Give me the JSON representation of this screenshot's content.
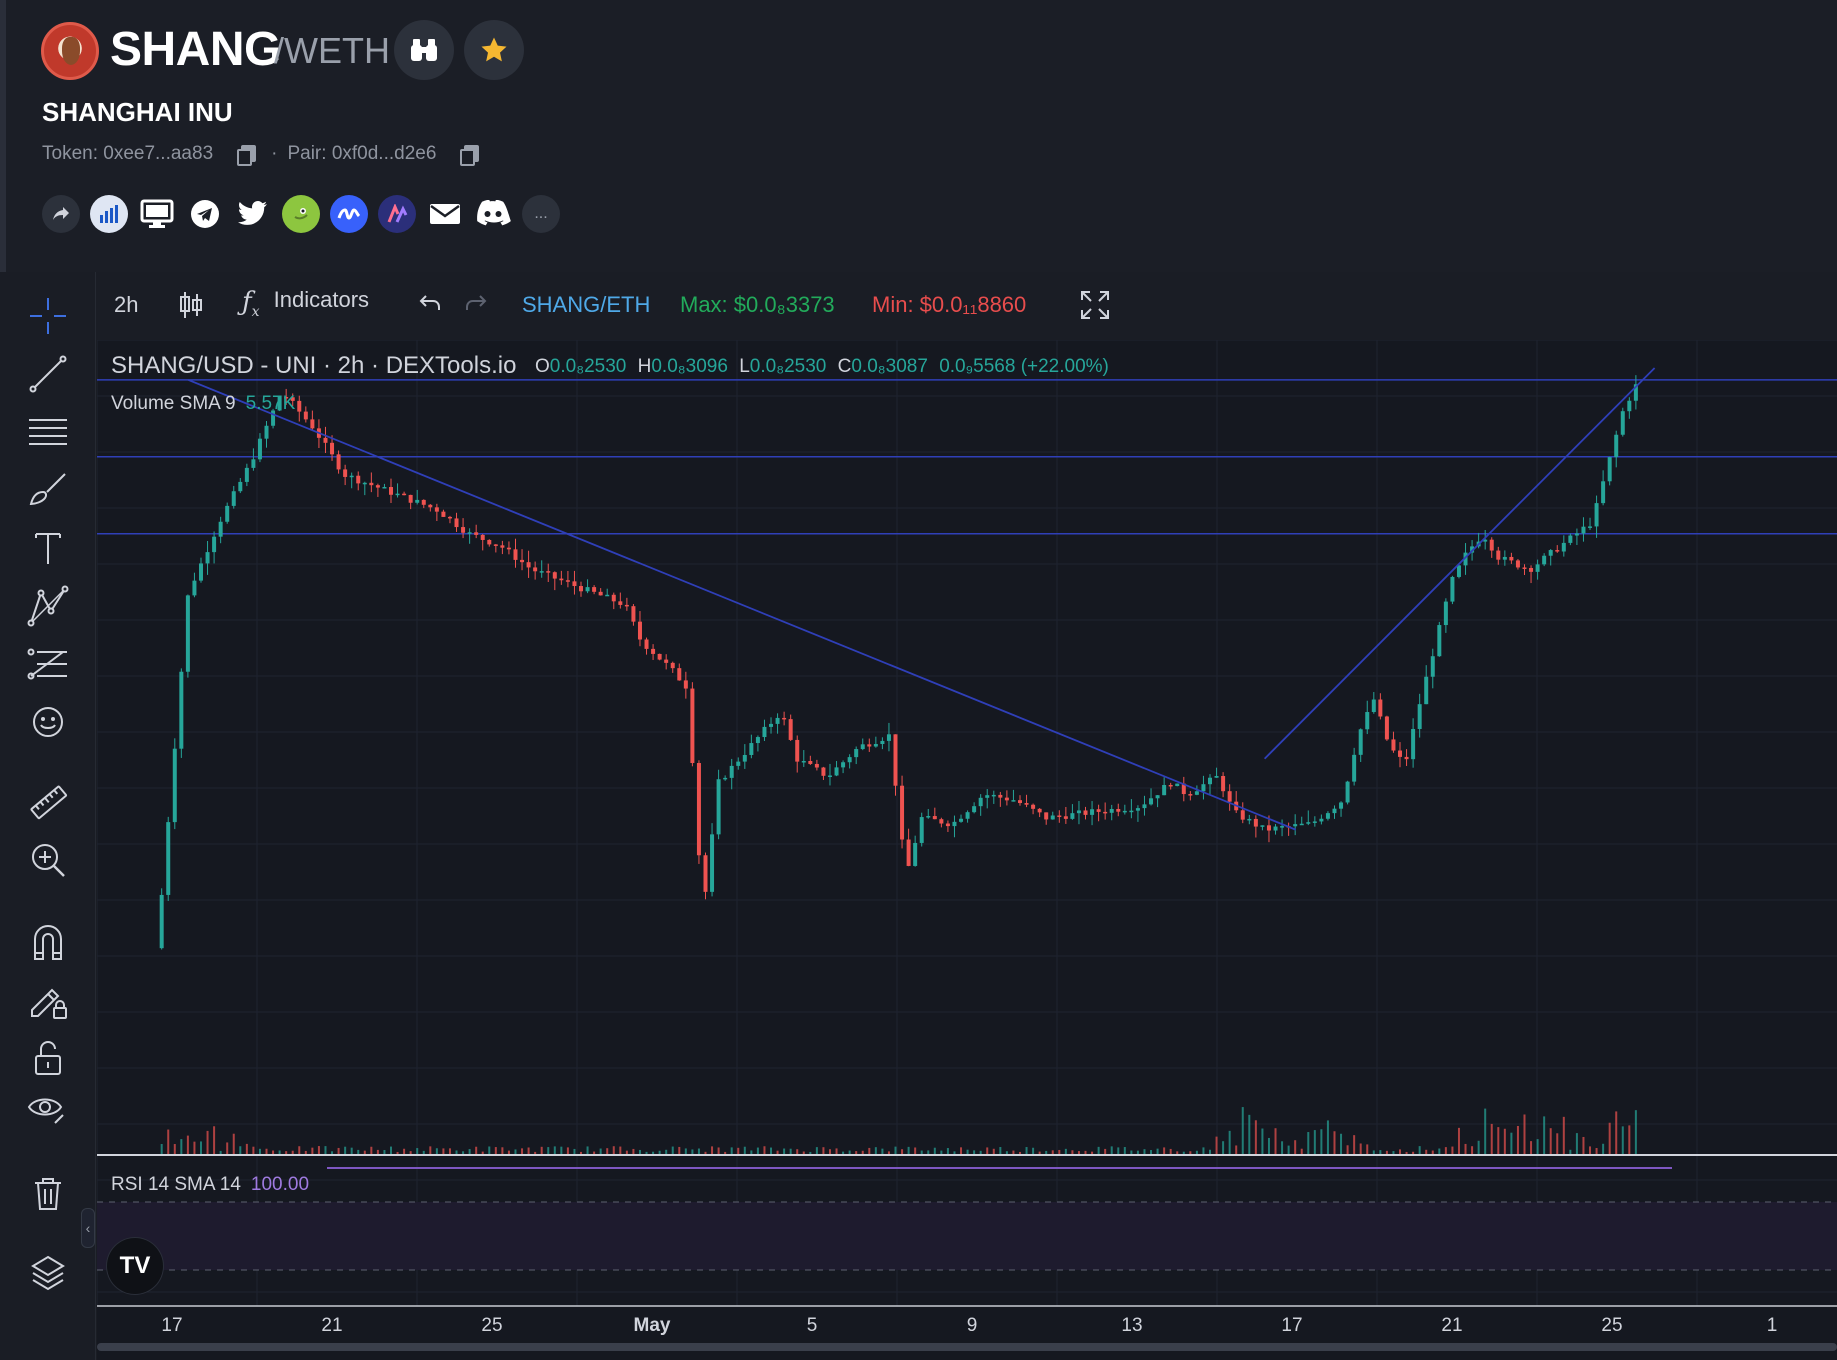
{
  "header": {
    "symbol": "SHANG",
    "quote": "/WETH",
    "name": "SHANGHAI INU",
    "token_label": "Token: 0xee7...aa83",
    "separator": "·",
    "pair_label": "Pair: 0xf0d...d2e6",
    "socials": [
      "share-icon",
      "dextools-chart-icon",
      "website-icon",
      "telegram-icon",
      "twitter-icon",
      "coingecko-icon",
      "coinmarketcap-icon",
      "arbitrum-icon",
      "email-icon",
      "discord-icon",
      "more-icon"
    ],
    "more_label": "..."
  },
  "toolbar": {
    "interval": "2h",
    "indicators": "Indicators",
    "pair": "SHANG/ETH",
    "max": "Max: $0.0₈3373",
    "min": "Min: $0.0₁₁8860"
  },
  "legend": {
    "title": "SHANG/USD - UNI · 2h · DEXTools.io",
    "o_k": "O",
    "o_v": "0.0₈2530",
    "h_k": "H",
    "h_v": "0.0₈3096",
    "l_k": "L",
    "l_v": "0.0₈2530",
    "c_k": "C",
    "c_v": "0.0₈3087",
    "change": "0.0₉5568 (+22.00%)",
    "volume_label": "Volume SMA 9",
    "volume_value": "5.57K",
    "rsi_label": "RSI 14 SMA 14",
    "rsi_value": "100.00"
  },
  "xaxis": {
    "labels": [
      "17",
      "21",
      "25",
      "May",
      "5",
      "9",
      "13",
      "17",
      "21",
      "25",
      "1"
    ]
  },
  "colors": {
    "up": "#26a69a",
    "down": "#ef5350",
    "drawing": "#2f3fb8",
    "rsi": "#7e57c2",
    "accent": "#4fa9e8",
    "max": "#22ab5b",
    "min": "#e84d4d"
  },
  "chart_data": {
    "type": "candlestick",
    "title": "SHANG/USD - UNI · 2h · DEXTools.io",
    "interval": "2h",
    "x_ticks": [
      "17",
      "21",
      "25",
      "May",
      "5",
      "9",
      "13",
      "17",
      "21",
      "25",
      "1"
    ],
    "price_path_relative": [
      [
        0,
        0.02
      ],
      [
        2,
        0.62
      ],
      [
        4,
        0.74
      ],
      [
        6,
        0.84
      ],
      [
        8,
        0.96
      ],
      [
        10,
        0.9
      ],
      [
        12,
        0.82
      ],
      [
        14,
        0.8
      ],
      [
        16,
        0.78
      ],
      [
        18,
        0.76
      ],
      [
        20,
        0.72
      ],
      [
        22,
        0.7
      ],
      [
        24,
        0.66
      ],
      [
        26,
        0.64
      ],
      [
        28,
        0.62
      ],
      [
        30,
        0.6
      ],
      [
        31,
        0.54
      ],
      [
        33,
        0.49
      ],
      [
        34,
        0.46
      ],
      [
        35,
        0.08
      ],
      [
        36,
        0.3
      ],
      [
        38,
        0.36
      ],
      [
        40,
        0.42
      ],
      [
        41,
        0.34
      ],
      [
        43,
        0.31
      ],
      [
        45,
        0.36
      ],
      [
        47,
        0.38
      ],
      [
        48,
        0.14
      ],
      [
        49,
        0.24
      ],
      [
        51,
        0.23
      ],
      [
        53,
        0.28
      ],
      [
        55,
        0.27
      ],
      [
        57,
        0.24
      ],
      [
        60,
        0.25
      ],
      [
        63,
        0.26
      ],
      [
        65,
        0.3
      ],
      [
        66,
        0.28
      ],
      [
        68,
        0.31
      ],
      [
        69,
        0.25
      ],
      [
        71,
        0.22
      ],
      [
        74,
        0.23
      ],
      [
        76,
        0.27
      ],
      [
        77,
        0.38
      ],
      [
        78,
        0.44
      ],
      [
        79,
        0.36
      ],
      [
        80,
        0.33
      ],
      [
        81,
        0.44
      ],
      [
        83,
        0.64
      ],
      [
        84,
        0.69
      ],
      [
        85,
        0.72
      ],
      [
        86,
        0.68
      ],
      [
        88,
        0.66
      ],
      [
        90,
        0.7
      ],
      [
        92,
        0.74
      ],
      [
        94,
        0.93
      ],
      [
        95,
        0.98
      ]
    ],
    "horizontal_lines_relative": [
      0.98,
      0.85,
      0.72
    ],
    "volume_spikes_relative": [
      [
        0,
        0.4
      ],
      [
        4,
        0.3
      ],
      [
        70,
        0.6
      ],
      [
        75,
        0.45
      ],
      [
        85,
        0.5
      ],
      [
        89,
        0.9
      ],
      [
        95,
        1.0
      ]
    ],
    "volume_sma": "5.57K",
    "rsi": "100.00"
  }
}
